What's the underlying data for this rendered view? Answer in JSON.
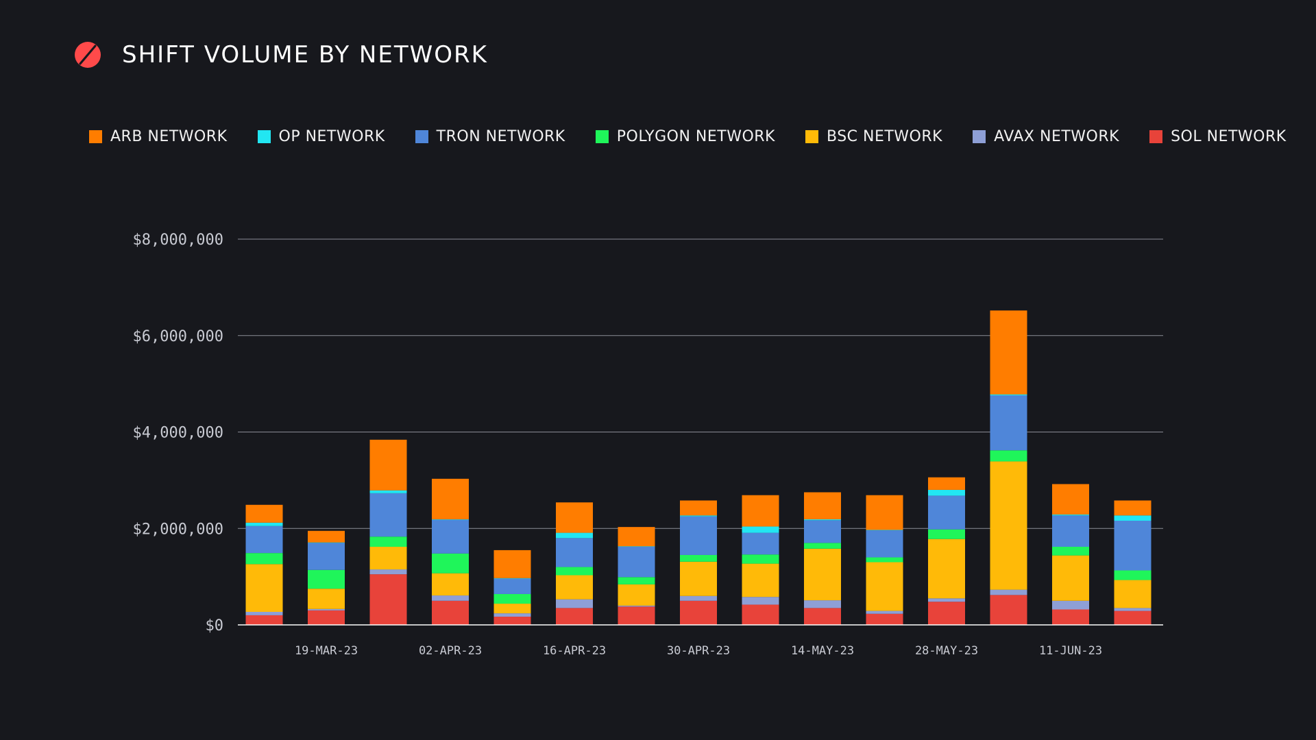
{
  "header": {
    "title": "SHIFT VOLUME BY NETWORK",
    "logo_icon": "slashed-circle-logo-icon",
    "logo_color": "#ff4a4a"
  },
  "colors": {
    "background": "#17181d",
    "gridline": "#8b8d96",
    "text": "#ffffff",
    "tick_text": "#c9cbd3"
  },
  "chart_data": {
    "type": "bar",
    "stacked": true,
    "title": "SHIFT VOLUME BY NETWORK",
    "xlabel": "",
    "ylabel": "",
    "ylim": [
      0,
      8000000
    ],
    "yticks": [
      0,
      2000000,
      4000000,
      6000000,
      8000000
    ],
    "ytick_labels": [
      "$0",
      "$2,000,000",
      "$4,000,000",
      "$6,000,000",
      "$8,000,000"
    ],
    "grid": true,
    "legend_position": "top",
    "x": [
      "12-MAR-23",
      "19-MAR-23",
      "26-MAR-23",
      "02-APR-23",
      "09-APR-23",
      "16-APR-23",
      "23-APR-23",
      "30-APR-23",
      "07-MAY-23",
      "14-MAY-23",
      "21-MAY-23",
      "28-MAY-23",
      "04-JUN-23",
      "11-JUN-23",
      "18-JUN-23"
    ],
    "xtick_labels": [
      "19-MAR-23",
      "02-APR-23",
      "16-APR-23",
      "30-APR-23",
      "14-MAY-23",
      "28-MAY-23",
      "11-JUN-23"
    ],
    "series": [
      {
        "name": "SOL NETWORK",
        "color": "#e8433a",
        "values": [
          200000,
          300000,
          1050000,
          500000,
          170000,
          350000,
          380000,
          500000,
          420000,
          350000,
          230000,
          480000,
          620000,
          320000,
          290000
        ]
      },
      {
        "name": "AVAX NETWORK",
        "color": "#8e9fd6",
        "values": [
          70000,
          30000,
          100000,
          110000,
          70000,
          180000,
          20000,
          100000,
          160000,
          160000,
          60000,
          70000,
          110000,
          180000,
          60000
        ]
      },
      {
        "name": "BSC NETWORK",
        "color": "#ffba08",
        "values": [
          990000,
          420000,
          470000,
          460000,
          200000,
          500000,
          440000,
          710000,
          690000,
          1070000,
          1010000,
          1230000,
          2660000,
          940000,
          580000
        ]
      },
      {
        "name": "POLYGON NETWORK",
        "color": "#1ff55a",
        "values": [
          230000,
          390000,
          210000,
          410000,
          200000,
          170000,
          150000,
          140000,
          190000,
          120000,
          100000,
          200000,
          230000,
          180000,
          200000
        ]
      },
      {
        "name": "TRON NETWORK",
        "color": "#4f86d9",
        "values": [
          560000,
          560000,
          900000,
          700000,
          320000,
          600000,
          630000,
          800000,
          450000,
          470000,
          560000,
          700000,
          1140000,
          650000,
          1030000
        ]
      },
      {
        "name": "OP NETWORK",
        "color": "#22e6f2",
        "values": [
          70000,
          10000,
          60000,
          10000,
          10000,
          110000,
          10000,
          20000,
          130000,
          20000,
          10000,
          120000,
          20000,
          20000,
          110000
        ]
      },
      {
        "name": "ARB NETWORK",
        "color": "#ff7d00",
        "values": [
          370000,
          240000,
          1050000,
          840000,
          580000,
          630000,
          400000,
          310000,
          650000,
          560000,
          720000,
          260000,
          1740000,
          630000,
          310000
        ]
      }
    ]
  },
  "legend": [
    {
      "name": "ARB NETWORK",
      "color": "#ff7d00"
    },
    {
      "name": "OP NETWORK",
      "color": "#22e6f2"
    },
    {
      "name": "TRON NETWORK",
      "color": "#4f86d9"
    },
    {
      "name": "POLYGON NETWORK",
      "color": "#1ff55a"
    },
    {
      "name": "BSC NETWORK",
      "color": "#ffba08"
    },
    {
      "name": "AVAX NETWORK",
      "color": "#8e9fd6"
    },
    {
      "name": "SOL NETWORK",
      "color": "#e8433a"
    }
  ]
}
